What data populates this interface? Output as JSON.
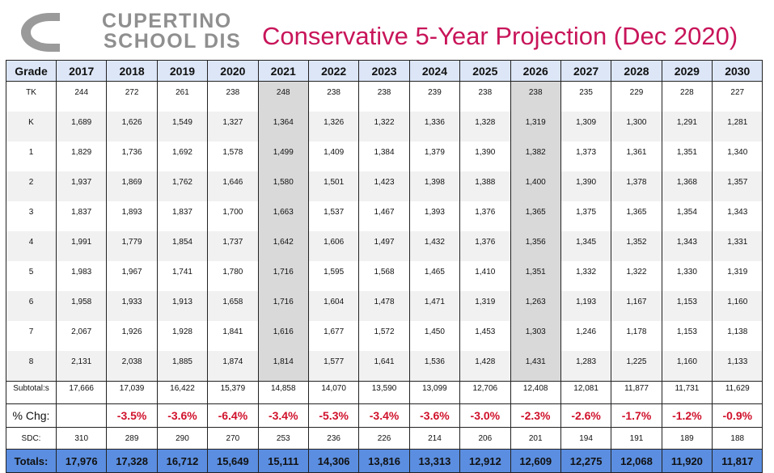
{
  "logo": {
    "line1": "CUPERTINO",
    "line2": "SCHOOL DIS",
    "icon": "district-logo-icon"
  },
  "title": "Conservative 5-Year Projection (Dec 2020)",
  "table": {
    "header_label": "Grade",
    "years": [
      "2017",
      "2018",
      "2019",
      "2020",
      "2021",
      "2022",
      "2023",
      "2024",
      "2025",
      "2026",
      "2027",
      "2028",
      "2029",
      "2030"
    ],
    "rows": [
      {
        "grade": "TK",
        "values": [
          "244",
          "272",
          "261",
          "238",
          "248",
          "238",
          "238",
          "239",
          "238",
          "238",
          "235",
          "229",
          "228",
          "227"
        ]
      },
      {
        "grade": "K",
        "values": [
          "1,689",
          "1,626",
          "1,549",
          "1,327",
          "1,364",
          "1,326",
          "1,322",
          "1,336",
          "1,328",
          "1,319",
          "1,309",
          "1,300",
          "1,291",
          "1,281"
        ]
      },
      {
        "grade": "1",
        "values": [
          "1,829",
          "1,736",
          "1,692",
          "1,578",
          "1,499",
          "1,409",
          "1,384",
          "1,379",
          "1,390",
          "1,382",
          "1,373",
          "1,361",
          "1,351",
          "1,340"
        ]
      },
      {
        "grade": "2",
        "values": [
          "1,937",
          "1,869",
          "1,762",
          "1,646",
          "1,580",
          "1,501",
          "1,423",
          "1,398",
          "1,388",
          "1,400",
          "1,390",
          "1,378",
          "1,368",
          "1,357"
        ]
      },
      {
        "grade": "3",
        "values": [
          "1,837",
          "1,893",
          "1,837",
          "1,700",
          "1,663",
          "1,537",
          "1,467",
          "1,393",
          "1,376",
          "1,365",
          "1,375",
          "1,365",
          "1,354",
          "1,343"
        ]
      },
      {
        "grade": "4",
        "values": [
          "1,991",
          "1,779",
          "1,854",
          "1,737",
          "1,642",
          "1,606",
          "1,497",
          "1,432",
          "1,376",
          "1,356",
          "1,345",
          "1,352",
          "1,343",
          "1,331"
        ]
      },
      {
        "grade": "5",
        "values": [
          "1,983",
          "1,967",
          "1,741",
          "1,780",
          "1,716",
          "1,595",
          "1,568",
          "1,465",
          "1,410",
          "1,351",
          "1,332",
          "1,322",
          "1,330",
          "1,319"
        ]
      },
      {
        "grade": "6",
        "values": [
          "1,958",
          "1,933",
          "1,913",
          "1,658",
          "1,716",
          "1,604",
          "1,478",
          "1,471",
          "1,319",
          "1,263",
          "1,193",
          "1,167",
          "1,153",
          "1,160"
        ]
      },
      {
        "grade": "7",
        "values": [
          "2,067",
          "1,926",
          "1,928",
          "1,841",
          "1,616",
          "1,677",
          "1,572",
          "1,450",
          "1,453",
          "1,303",
          "1,246",
          "1,178",
          "1,153",
          "1,138"
        ]
      },
      {
        "grade": "8",
        "values": [
          "2,131",
          "2,038",
          "1,885",
          "1,874",
          "1,814",
          "1,577",
          "1,641",
          "1,536",
          "1,428",
          "1,431",
          "1,283",
          "1,225",
          "1,160",
          "1,133"
        ]
      }
    ],
    "subtotals": {
      "label": "Subtotal:s",
      "values": [
        "17,666",
        "17,039",
        "16,422",
        "15,379",
        "14,858",
        "14,070",
        "13,590",
        "13,099",
        "12,706",
        "12,408",
        "12,081",
        "11,877",
        "11,731",
        "11,629"
      ]
    },
    "pct_change": {
      "label": "% Chg:",
      "values": [
        "",
        "-3.5%",
        "-3.6%",
        "-6.4%",
        "-3.4%",
        "-5.3%",
        "-3.4%",
        "-3.6%",
        "-3.0%",
        "-2.3%",
        "-2.6%",
        "-1.7%",
        "-1.2%",
        "-0.9%"
      ]
    },
    "sdc": {
      "label": "SDC:",
      "values": [
        "310",
        "289",
        "290",
        "270",
        "253",
        "236",
        "226",
        "214",
        "206",
        "201",
        "194",
        "191",
        "189",
        "188"
      ]
    },
    "totals": {
      "label": "Totals:",
      "values": [
        "17,976",
        "17,328",
        "16,712",
        "15,649",
        "15,111",
        "14,306",
        "13,816",
        "13,313",
        "12,912",
        "12,609",
        "12,275",
        "12,068",
        "11,920",
        "11,817"
      ]
    },
    "highlight_years": [
      "2021",
      "2026"
    ],
    "colors": {
      "header_bg": "#dce6f7",
      "totals_bg": "#5b8ee0",
      "highlight": "#d9d9d9",
      "negative": "#d0112b",
      "title": "#c8155a"
    }
  }
}
